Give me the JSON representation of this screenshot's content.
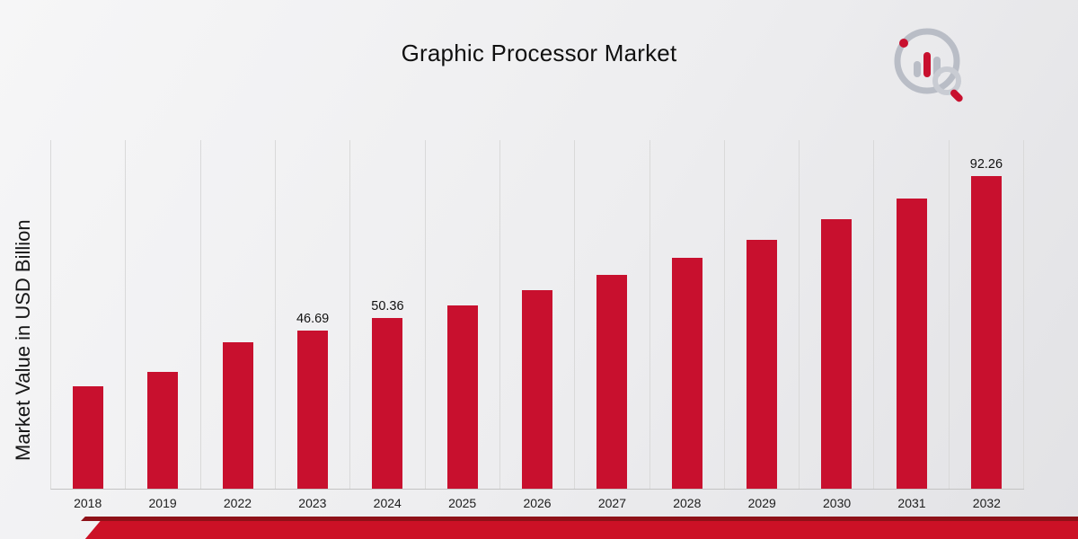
{
  "title": "Graphic Processor Market",
  "y_axis_label": "Market Value in USD Billion",
  "colors": {
    "bar_red": "#c8102e",
    "band_dark_red": "#8e1118",
    "band_red": "#cc1126",
    "gridline": "#d9d9d9",
    "logo_gray": "#b9bdc6"
  },
  "chart_data": {
    "type": "bar",
    "title": "Graphic Processor Market",
    "xlabel": "",
    "ylabel": "Market Value in USD Billion",
    "categories": [
      "2018",
      "2019",
      "2022",
      "2023",
      "2024",
      "2025",
      "2026",
      "2027",
      "2028",
      "2029",
      "2030",
      "2031",
      "2032"
    ],
    "values": [
      30.2,
      34.6,
      43.3,
      46.69,
      50.36,
      54.2,
      58.6,
      63.2,
      68.2,
      73.6,
      79.6,
      85.8,
      92.26
    ],
    "data_labels": {
      "2023": "46.69",
      "2024": "50.36",
      "2032": "92.26"
    },
    "ylim": [
      0,
      103
    ],
    "grid": "vertical-only",
    "legend": "none",
    "bar_color": "#c8102e"
  },
  "logo": {
    "name": "market-research-brand-logo"
  }
}
